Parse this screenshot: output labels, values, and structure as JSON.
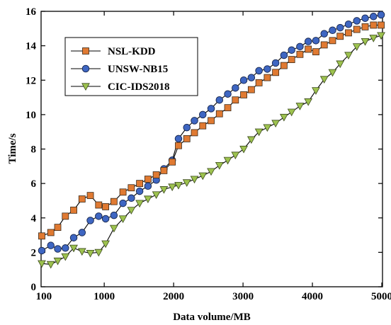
{
  "chart_data": {
    "type": "line",
    "title": "",
    "xlabel": "Data volume/MB",
    "ylabel": "Time/s",
    "xlim": [
      90,
      5010
    ],
    "ylim": [
      0,
      16
    ],
    "x_ticks": [
      1000,
      2000,
      3000,
      4000,
      5000
    ],
    "x_tick_labels": [
      "100",
      "1000",
      "2000",
      "3000",
      "4000",
      "5000"
    ],
    "x_tick_label_values": [
      130,
      1000,
      2000,
      3000,
      4000,
      5000
    ],
    "y_ticks": [
      0,
      2,
      4,
      6,
      8,
      10,
      12,
      14,
      16
    ],
    "y_tick_labels": [
      "0",
      "2",
      "4",
      "6",
      "8",
      "10",
      "12",
      "14",
      "16"
    ],
    "grid": false,
    "legend": {
      "placement": "top-left",
      "framed": true
    },
    "x": [
      100,
      230,
      330,
      440,
      560,
      680,
      800,
      920,
      1020,
      1140,
      1270,
      1390,
      1510,
      1630,
      1750,
      1860,
      1980,
      2070,
      2190,
      2300,
      2420,
      2540,
      2660,
      2780,
      2890,
      3010,
      3120,
      3230,
      3350,
      3470,
      3590,
      3700,
      3820,
      3940,
      4050,
      4170,
      4290,
      4400,
      4520,
      4640,
      4760,
      4880,
      4990
    ],
    "series": [
      {
        "name": "NSL-KDD",
        "color": "#e07a32",
        "marker": "square",
        "values": [
          2.95,
          3.15,
          3.45,
          4.1,
          4.45,
          5.1,
          5.3,
          4.75,
          4.65,
          4.95,
          5.5,
          5.75,
          6.0,
          6.25,
          6.5,
          6.75,
          7.25,
          8.2,
          8.6,
          8.95,
          9.35,
          9.65,
          10.05,
          10.4,
          10.85,
          11.15,
          11.45,
          11.85,
          12.15,
          12.45,
          12.85,
          13.2,
          13.5,
          13.8,
          13.65,
          14.05,
          14.3,
          14.55,
          14.75,
          14.95,
          15.1,
          15.2,
          15.2
        ]
      },
      {
        "name": "UNSW-NB15",
        "color": "#3e66c2",
        "marker": "circle",
        "values": [
          2.1,
          2.4,
          2.2,
          2.25,
          2.85,
          3.15,
          3.85,
          4.1,
          3.95,
          4.15,
          4.85,
          5.15,
          5.55,
          5.85,
          6.2,
          6.85,
          7.35,
          8.6,
          9.25,
          9.65,
          10.0,
          10.35,
          10.85,
          11.2,
          11.55,
          12.0,
          12.15,
          12.55,
          12.65,
          13.0,
          13.45,
          13.75,
          13.95,
          14.25,
          14.3,
          14.7,
          14.9,
          15.05,
          15.25,
          15.45,
          15.6,
          15.7,
          15.8
        ]
      },
      {
        "name": "CIC-IDS2018",
        "color": "#9dc24f",
        "marker": "triangle-down",
        "values": [
          1.35,
          1.3,
          1.5,
          1.75,
          2.25,
          2.05,
          1.95,
          2.0,
          2.5,
          3.4,
          3.95,
          4.45,
          4.85,
          5.1,
          5.35,
          5.65,
          5.8,
          5.9,
          6.05,
          6.25,
          6.45,
          6.7,
          7.05,
          7.35,
          7.65,
          8.0,
          8.55,
          9.0,
          9.25,
          9.5,
          9.85,
          10.15,
          10.5,
          10.75,
          11.4,
          12.05,
          12.45,
          12.95,
          13.45,
          13.95,
          14.25,
          14.45,
          14.6
        ]
      }
    ]
  }
}
